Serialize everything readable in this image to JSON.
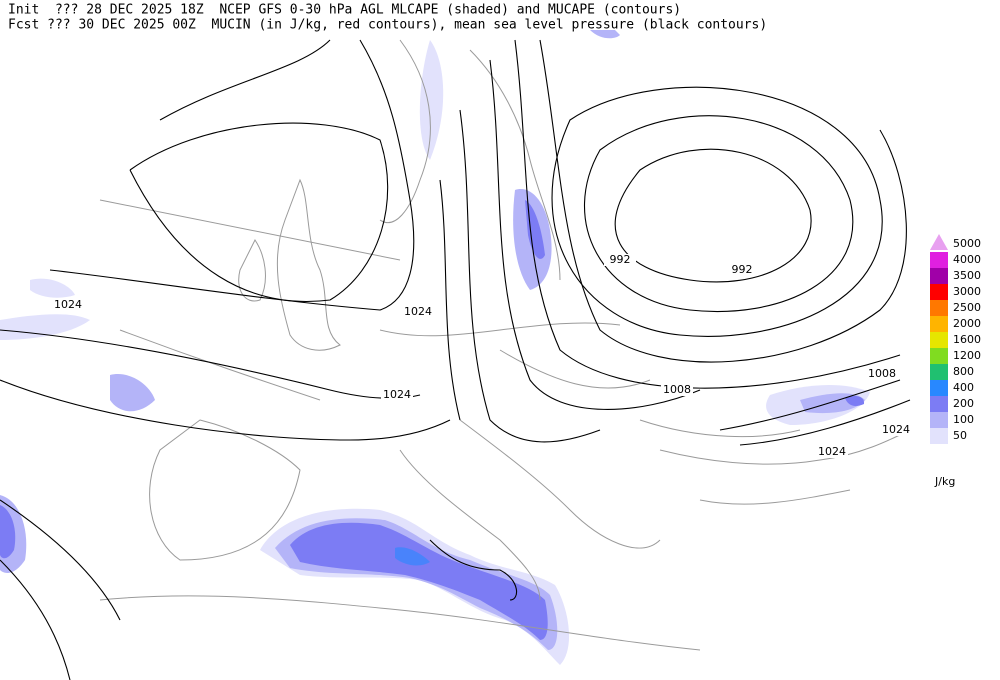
{
  "header": {
    "lines": [
      "Init  ??? 28 DEC 2025 18Z  NCEP GFS 0-30 hPa AGL MLCAPE (shaded) and MUCAPE (contours)",
      "Fcst ??? 30 DEC 2025 00Z  MUCIN (in J/kg, red contours), mean sea level pressure (black contours)"
    ]
  },
  "legend": {
    "levels": [
      {
        "label": 5000,
        "color": "#e8a0f0"
      },
      {
        "label": 4000,
        "color": "#e020e0"
      },
      {
        "label": 3500,
        "color": "#a000a8"
      },
      {
        "label": 3000,
        "color": "#ff0000"
      },
      {
        "label": 2500,
        "color": "#ff7800"
      },
      {
        "label": 2000,
        "color": "#ffb400"
      },
      {
        "label": 1600,
        "color": "#e6e600"
      },
      {
        "label": 1200,
        "color": "#80dc20"
      },
      {
        "label": 800,
        "color": "#20c070"
      },
      {
        "label": 400,
        "color": "#2888ff"
      },
      {
        "label": 200,
        "color": "#7c7cf4"
      },
      {
        "label": 100,
        "color": "#b4b4f8"
      },
      {
        "label": 50,
        "color": "#e2e2fc"
      }
    ],
    "unit": "J/kg"
  },
  "contour_labels": [
    992,
    992,
    1024,
    1024,
    1024,
    1008,
    1008,
    1024,
    1024
  ]
}
